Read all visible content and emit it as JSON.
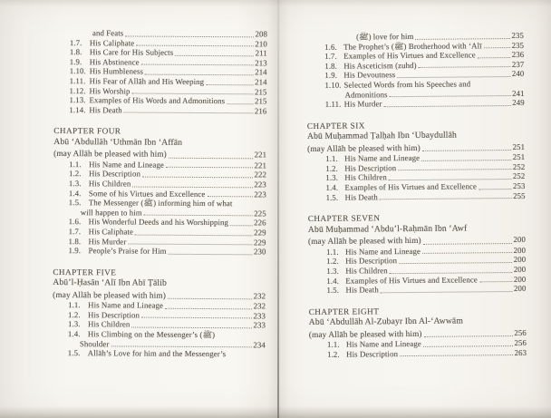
{
  "colors": {
    "paper": "#f8f6f0",
    "ink": "#57534a",
    "dot_leader": "#8d8679"
  },
  "left_column": {
    "entries": [
      {
        "type": "cont",
        "text": "and Feats",
        "page": "208"
      },
      {
        "type": "item",
        "num": "1.7.",
        "text": "His Caliphate",
        "page": "210"
      },
      {
        "type": "item",
        "num": "1.8.",
        "text": "His Care for His Subjects",
        "page": "211"
      },
      {
        "type": "item",
        "num": "1.9.",
        "text": "His Abstinence",
        "page": "213"
      },
      {
        "type": "item",
        "num": "1.10.",
        "text": "His Humbleness",
        "page": "214"
      },
      {
        "type": "item",
        "num": "1.11.",
        "text": "His Fear of Allāh and His Weeping",
        "page": "214"
      },
      {
        "type": "item",
        "num": "1.12.",
        "text": "His Worship",
        "page": "215"
      },
      {
        "type": "item",
        "num": "1.13.",
        "text": "Examples of His Words and Admonitions",
        "page": "215"
      },
      {
        "type": "item",
        "num": "1.14.",
        "text": "His Death",
        "page": "216"
      },
      {
        "type": "spacer"
      },
      {
        "type": "chapter",
        "text": "CHAPTER FOUR"
      },
      {
        "type": "name",
        "text": "Abū ‘Abdullāh ‘Uthmān Ibn ‘Affān"
      },
      {
        "type": "dotline",
        "text": "(may Allāh be pleased with him)",
        "page": "221"
      },
      {
        "type": "item",
        "num": "1.1.",
        "text": "His Name and Lineage",
        "page": "221"
      },
      {
        "type": "item",
        "num": "1.2.",
        "text": "His Description",
        "page": "222"
      },
      {
        "type": "item",
        "num": "1.3.",
        "text": "His Children",
        "page": "223"
      },
      {
        "type": "item",
        "num": "1.4.",
        "text": "Some of his Virtues and Excellence",
        "page": "223"
      },
      {
        "type": "item2",
        "num": "1.5.",
        "text": "The Messenger (ﷺ) informing him of what",
        "text2": "will happen to him",
        "page": "225"
      },
      {
        "type": "item",
        "num": "1.6.",
        "text": "His Wonderful Deeds and his Worshipping",
        "page": "226"
      },
      {
        "type": "item",
        "num": "1.7.",
        "text": "His Caliphate",
        "page": "229"
      },
      {
        "type": "item",
        "num": "1.8.",
        "text": "His Murder",
        "page": "229"
      },
      {
        "type": "item",
        "num": "1.9.",
        "text": "People’s Praise for Him",
        "page": "230"
      },
      {
        "type": "spacer"
      },
      {
        "type": "chapter",
        "text": "CHAPTER FIVE"
      },
      {
        "type": "name",
        "text": "Abū’l-Ḥasān ‘Alī Ibn Abī Ṭālib"
      },
      {
        "type": "dotline",
        "text": "(may Allāh be pleased with him)",
        "page": "232"
      },
      {
        "type": "item",
        "num": "1.1.",
        "text": "His Name and Lineage",
        "page": "232"
      },
      {
        "type": "item",
        "num": "1.2.",
        "text": "His Description",
        "page": "233"
      },
      {
        "type": "item",
        "num": "1.3.",
        "text": "His Children",
        "page": "233"
      },
      {
        "type": "item2",
        "num": "1.4.",
        "text": "His Climbing on the Messenger’s (ﷺ)",
        "text2": "Shoulder",
        "page": "234"
      },
      {
        "type": "item",
        "num": "1.5.",
        "text": "Allāh’s Love for him and the Messenger’s",
        "page": ""
      }
    ]
  },
  "right_column": {
    "entries": [
      {
        "type": "cont",
        "text": "(ﷺ) love for him",
        "page": "235"
      },
      {
        "type": "item",
        "num": "1.6.",
        "text": "The Prophet’s (ﷺ) Brotherhood with ‘Alī",
        "page": "235"
      },
      {
        "type": "item",
        "num": "1.7.",
        "text": "Examples of His Virtues and Excellence",
        "page": "236"
      },
      {
        "type": "item",
        "num": "1.8.",
        "text": "His Asceticism (zuhd)",
        "page": "237"
      },
      {
        "type": "item",
        "num": "1.9.",
        "text": "His Devoutness",
        "page": "240"
      },
      {
        "type": "item2",
        "num": "1.10.",
        "text": "Selected Words from his Speeches and",
        "text2": "Admonitions",
        "page": "241"
      },
      {
        "type": "item",
        "num": "1.11.",
        "text": "His Murder",
        "page": "249"
      },
      {
        "type": "spacer"
      },
      {
        "type": "chapter",
        "text": "CHAPTER SIX"
      },
      {
        "type": "name",
        "text": "Abū Muḥammad Ṭalḥah Ibn ‘Ubaydullāh"
      },
      {
        "type": "dotline",
        "text": "(may Allāh be pleased with him)",
        "page": "251"
      },
      {
        "type": "item",
        "num": "1.1.",
        "text": "His Name and Lineage",
        "page": "251"
      },
      {
        "type": "item",
        "num": "1.2.",
        "text": "His Description",
        "page": "252"
      },
      {
        "type": "item",
        "num": "1.3.",
        "text": "His Children",
        "page": "252"
      },
      {
        "type": "item",
        "num": "1.4.",
        "text": "Examples of His Virtues and Excellence",
        "page": "253"
      },
      {
        "type": "item",
        "num": "1.5.",
        "text": "His Death",
        "page": "255"
      },
      {
        "type": "spacer"
      },
      {
        "type": "chapter",
        "text": "CHAPTER SEVEN"
      },
      {
        "type": "name",
        "text": "Abū Muḥammad ‘Abdu’l-Raḥmān Ibn ‘Awf"
      },
      {
        "type": "dotline",
        "text": "(may Allāh be pleased with him)",
        "page": "200"
      },
      {
        "type": "item",
        "num": "1.1.",
        "text": "His Name and Lineage",
        "page": "200"
      },
      {
        "type": "item",
        "num": "1.2.",
        "text": "His Description",
        "page": "200"
      },
      {
        "type": "item",
        "num": "1.3.",
        "text": "His Children",
        "page": "200"
      },
      {
        "type": "item",
        "num": "1.4.",
        "text": "Examples of His Virtues and Excellence",
        "page": "200"
      },
      {
        "type": "item",
        "num": "1.5.",
        "text": "His Death",
        "page": "200"
      },
      {
        "type": "spacer"
      },
      {
        "type": "chapter",
        "text": "CHAPTER EIGHT"
      },
      {
        "type": "name",
        "text": "Abū ‘Abdullāh Al-Zubayr Ibn Al-‘Awwām"
      },
      {
        "type": "dotline",
        "text": "(may Allāh be pleased with him)",
        "page": "256"
      },
      {
        "type": "item",
        "num": "1.1.",
        "text": "His Name and Lineage",
        "page": "256"
      },
      {
        "type": "item",
        "num": "1.2.",
        "text": "His Description",
        "page": "263"
      }
    ]
  }
}
